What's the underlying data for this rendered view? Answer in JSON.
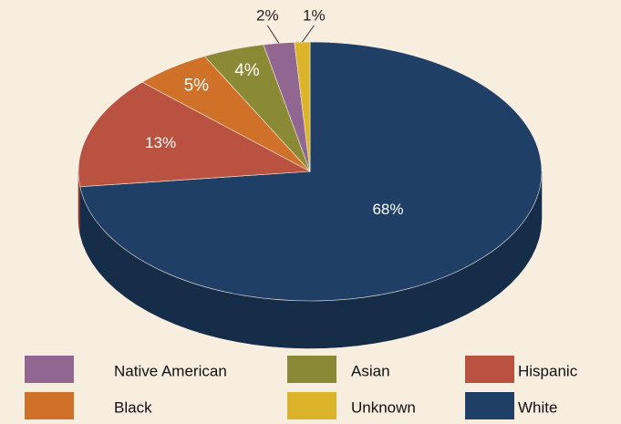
{
  "chart_data": {
    "type": "pie",
    "categories": [
      "White",
      "Hispanic",
      "Black",
      "Asian",
      "Native American",
      "Unknown"
    ],
    "values": [
      68,
      13,
      5,
      4,
      2,
      1
    ],
    "value_labels": [
      "68%",
      "13%",
      "5%",
      "4%",
      "2%",
      "1%"
    ],
    "colors": [
      "#1f3f66",
      "#b95241",
      "#cf7129",
      "#8a8a36",
      "#916791",
      "#dcb42a"
    ]
  }
}
